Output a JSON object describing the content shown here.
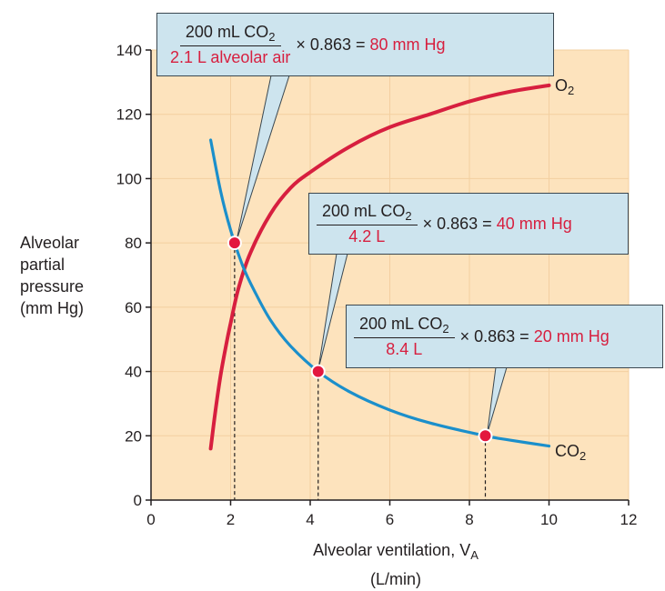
{
  "chart_data": {
    "type": "line",
    "xlabel_main": "Alveolar ventilation, V",
    "xlabel_sub": "A",
    "xlabel_unit": "(L/min)",
    "ylabel_lines": [
      "Alveolar",
      "partial",
      "pressure",
      "(mm Hg)"
    ],
    "xlim": [
      0,
      12
    ],
    "ylim": [
      0,
      140
    ],
    "xticks": [
      0,
      2,
      4,
      6,
      8,
      10,
      12
    ],
    "yticks": [
      0,
      20,
      40,
      60,
      80,
      100,
      120,
      140
    ],
    "series": [
      {
        "name": "O2",
        "color": "#d71f3f",
        "x": [
          1.5,
          1.6,
          1.75,
          1.9,
          2.0,
          2.2,
          2.5,
          3.0,
          3.5,
          4.0,
          5.0,
          6.0,
          7.0,
          8.0,
          9.0,
          10.0
        ],
        "y": [
          16,
          26,
          39,
          49,
          55,
          66,
          77,
          89,
          97,
          102,
          110,
          116,
          120,
          124,
          127,
          129
        ]
      },
      {
        "name": "CO2",
        "color": "#1b8fcb",
        "x": [
          1.5,
          1.75,
          2.0,
          2.3,
          2.6,
          3.0,
          3.5,
          4.2,
          5.0,
          6.0,
          7.0,
          8.4,
          9.0,
          10.0
        ],
        "y": [
          112,
          96,
          84,
          73,
          65,
          56,
          48,
          40,
          33.6,
          28,
          24,
          20,
          18.7,
          16.8
        ]
      }
    ],
    "points": [
      {
        "x": 2.1,
        "y": 80
      },
      {
        "x": 4.2,
        "y": 40
      },
      {
        "x": 8.4,
        "y": 20
      }
    ],
    "series_labels": {
      "o2_main": "O",
      "o2_sub": "2",
      "co2_main": "CO",
      "co2_sub": "2"
    },
    "annotations": [
      {
        "num_main": "200 mL CO",
        "num_sub": "2",
        "den": "2.1 L alveolar air",
        "factor": "× 0.863 = ",
        "result": "80 mm Hg"
      },
      {
        "num_main": "200 mL CO",
        "num_sub": "2",
        "den": "4.2 L",
        "factor": "× 0.863 = ",
        "result": "40 mm Hg"
      },
      {
        "num_main": "200 mL CO",
        "num_sub": "2",
        "den": "8.4 L",
        "factor": "× 0.863 = ",
        "result": "20 mm Hg"
      }
    ],
    "colors": {
      "background": "#fde3bd",
      "o2": "#d71f3f",
      "co2": "#1b8fcb",
      "callout": "#cde4ee"
    }
  }
}
